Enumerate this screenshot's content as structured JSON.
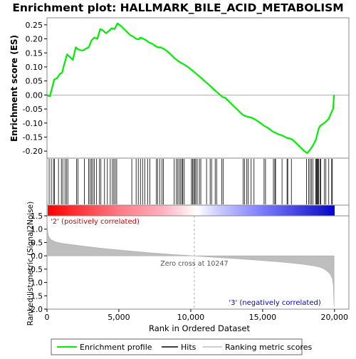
{
  "chart_data": {
    "type": "line",
    "title": "Enrichment plot: HALLMARK_BILE_ACID_METABOLISM",
    "es_panel": {
      "ylabel": "Enrichment score (ES)",
      "ylim": [
        -0.225,
        0.275
      ],
      "yticks": [
        -0.2,
        -0.15,
        -0.1,
        -0.05,
        0.0,
        0.05,
        0.1,
        0.15,
        0.2,
        0.25
      ],
      "ytick_labels": [
        "-0.20",
        "-0.15",
        "-0.10",
        "-0.05",
        "0.00",
        "0.05",
        "0.10",
        "0.15",
        "0.20",
        "0.25"
      ],
      "series": [
        {
          "color": "#00ee00",
          "x": [
            0,
            200,
            350,
            500,
            700,
            900,
            1050,
            1200,
            1400,
            1600,
            1800,
            2000,
            2100,
            2300,
            2500,
            2700,
            2900,
            3100,
            3300,
            3500,
            3700,
            3900,
            4100,
            4300,
            4500,
            4700,
            4900,
            5000,
            5200,
            5400,
            5600,
            5800,
            6000,
            6200,
            6400,
            6500,
            6700,
            6900,
            7100,
            7300,
            7500,
            7700,
            7900,
            8100,
            8300,
            8500,
            8700,
            8900,
            9100,
            9300,
            9500,
            9800,
            10100,
            10400,
            10700,
            11000,
            11300,
            11600,
            11900,
            12200,
            12400,
            12700,
            13000,
            13300,
            13600,
            13800,
            14000,
            14200,
            14500,
            14800,
            15100,
            15400,
            15700,
            15900,
            16100,
            16300,
            16500,
            16700,
            16900,
            17100,
            17300,
            17500,
            17700,
            17900,
            18100,
            18300,
            18500,
            18600,
            18700,
            18800,
            18900,
            19000,
            19200,
            19400,
            19600,
            19800,
            19900,
            19970
          ],
          "y": [
            0.0,
            -0.005,
            0.025,
            0.055,
            0.06,
            0.075,
            0.08,
            0.11,
            0.145,
            0.135,
            0.125,
            0.17,
            0.165,
            0.16,
            0.158,
            0.165,
            0.17,
            0.195,
            0.205,
            0.2,
            0.235,
            0.23,
            0.22,
            0.228,
            0.238,
            0.235,
            0.255,
            0.252,
            0.243,
            0.233,
            0.223,
            0.213,
            0.208,
            0.2,
            0.198,
            0.205,
            0.2,
            0.195,
            0.187,
            0.183,
            0.176,
            0.17,
            0.17,
            0.165,
            0.158,
            0.15,
            0.14,
            0.13,
            0.122,
            0.115,
            0.11,
            0.1,
            0.088,
            0.075,
            0.062,
            0.048,
            0.035,
            0.02,
            0.007,
            -0.007,
            -0.01,
            -0.025,
            -0.04,
            -0.055,
            -0.07,
            -0.075,
            -0.078,
            -0.08,
            -0.088,
            -0.098,
            -0.11,
            -0.118,
            -0.13,
            -0.135,
            -0.14,
            -0.143,
            -0.148,
            -0.153,
            -0.155,
            -0.16,
            -0.17,
            -0.18,
            -0.19,
            -0.2,
            -0.207,
            -0.195,
            -0.18,
            -0.17,
            -0.16,
            -0.14,
            -0.12,
            -0.11,
            -0.103,
            -0.095,
            -0.085,
            -0.06,
            -0.05,
            0.0
          ]
        }
      ]
    },
    "hits": {
      "x": [
        150,
        300,
        450,
        520,
        800,
        1000,
        1100,
        1250,
        1350,
        1450,
        2050,
        2150,
        2600,
        2900,
        3000,
        3100,
        3200,
        3300,
        3450,
        3650,
        3750,
        4000,
        4200,
        4400,
        4550,
        4650,
        4750,
        4850,
        5900,
        6200,
        6350,
        6500,
        6650,
        6800,
        7000,
        7150,
        7600,
        7700,
        7850,
        8000,
        8100,
        8850,
        9000,
        9100,
        9200,
        9300,
        9400,
        9450,
        9550,
        10050,
        10120,
        10200,
        10280,
        10350,
        10450,
        10600,
        10700,
        11100,
        11350,
        11450,
        11700,
        11800,
        12150,
        12250,
        13650,
        13750,
        13900,
        14000,
        14200,
        14400,
        15100,
        15200,
        15750,
        15850,
        15900,
        16350,
        16700,
        16750,
        17000,
        18050,
        18200,
        18300,
        18400,
        18500,
        18700,
        18750,
        18800,
        18850,
        18900,
        19000,
        19050,
        19300,
        19400,
        19600,
        19800,
        19850
      ]
    },
    "ranking_panel": {
      "ylabel": "Ranked list metric (Signal2Noise)",
      "ylim": [
        -2.0,
        1.5
      ],
      "yticks": [
        -2.0,
        -1.5,
        -1.0,
        -0.5,
        0.0,
        0.5,
        1.0,
        1.5
      ],
      "ytick_labels": [
        "-2.0",
        "-1.5",
        "-1.0",
        "-0.5",
        "0.0",
        "0.5",
        "1.0",
        "1.5"
      ],
      "x": [
        0,
        40,
        100,
        200,
        350,
        600,
        1000,
        2000,
        3000,
        4000,
        5000,
        6000,
        7000,
        8000,
        9000,
        10247,
        11000,
        12000,
        13000,
        14000,
        15000,
        16000,
        17000,
        18000,
        18600,
        19000,
        19300,
        19500,
        19700,
        19850,
        19920,
        19970
      ],
      "y": [
        1.45,
        0.95,
        0.75,
        0.65,
        0.58,
        0.52,
        0.47,
        0.4,
        0.33,
        0.27,
        0.22,
        0.17,
        0.12,
        0.08,
        0.04,
        0.0,
        -0.03,
        -0.07,
        -0.1,
        -0.14,
        -0.18,
        -0.22,
        -0.27,
        -0.33,
        -0.38,
        -0.43,
        -0.5,
        -0.58,
        -0.68,
        -0.85,
        -1.1,
        -1.9
      ],
      "zero_cross_label": "Zero cross at 10247",
      "zero_cross_x": 10247,
      "pos_label": "'2' (positively correlated)",
      "neg_label": "'3' (negatively correlated)"
    },
    "xaxis": {
      "label": "Rank in Ordered Dataset",
      "lim": [
        0,
        21000
      ],
      "ticks": [
        0,
        5000,
        10000,
        15000,
        20000
      ],
      "tick_labels": [
        "0",
        "5,000",
        "10,000",
        "15,000",
        "20,000"
      ]
    },
    "n_genes": 19970,
    "legend": {
      "placement": "bottom",
      "entries": [
        "Enrichment profile",
        "Hits",
        "Ranking metric scores"
      ]
    },
    "colors": {
      "es_line": "#00ee00",
      "hits": "#000000",
      "ranking_fill": "#bebebe",
      "pos_end": "#ff0000",
      "neutral": "#ffffff",
      "neg_end": "#0000ff"
    }
  }
}
